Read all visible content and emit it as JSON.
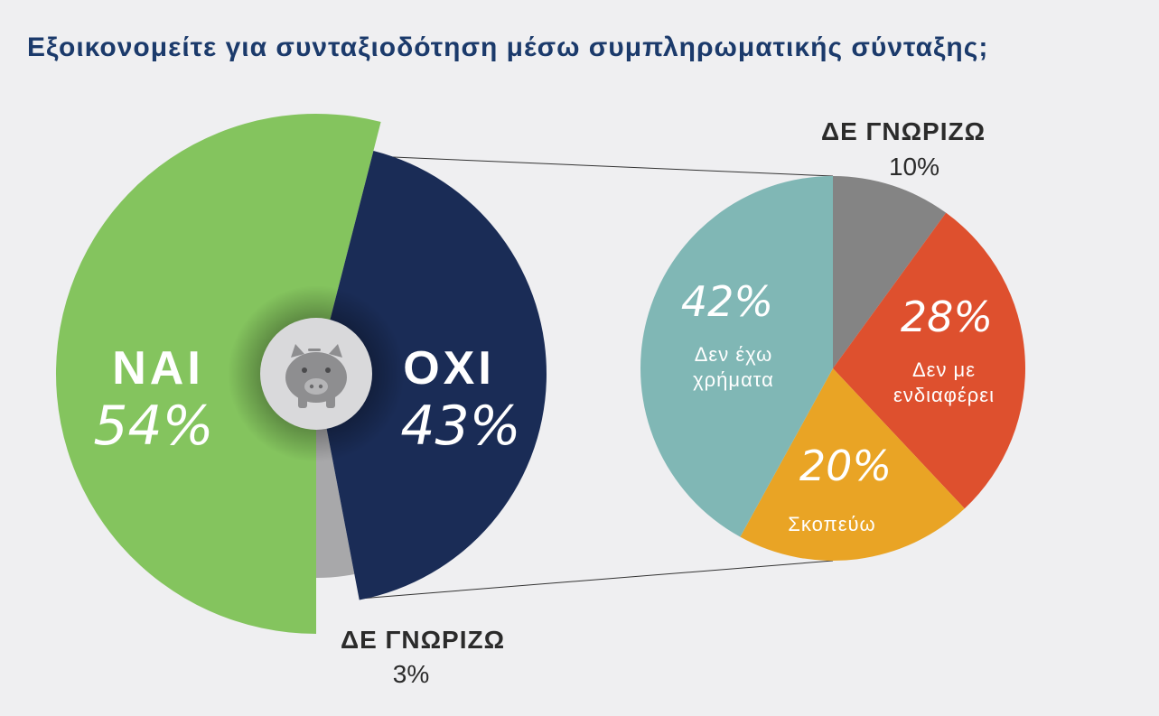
{
  "title": "Εξοικονομείτε για συνταξιοδότηση μέσω συμπληρωματικής σύνταξης;",
  "colors": {
    "yes": "#84c45e",
    "no": "#1a2c56",
    "dont_know_main": "#a8a8aa",
    "no_money": "#80b7b5",
    "not_interested": "#de502e",
    "plan_to": "#e9a425",
    "dont_know_sub": "#848484",
    "background": "#efeff1",
    "title": "#1b3a6b"
  },
  "center_icon": "piggy-bank-icon",
  "chart_data": [
    {
      "type": "pie",
      "name_in_chart": "main",
      "slices": [
        {
          "key": "yes",
          "label": "ΝΑΙ",
          "value": 54,
          "value_label": "54%"
        },
        {
          "key": "no",
          "label": "ΟΧΙ",
          "value": 43,
          "value_label": "43%"
        },
        {
          "key": "dont_know",
          "label": "ΔΕ ΓΝΩΡΙΖΩ",
          "value": 3,
          "value_label": "3%"
        }
      ]
    },
    {
      "type": "pie",
      "breakdown_of": "ΟΧΙ",
      "slices": [
        {
          "key": "dont_know_sub",
          "label": "ΔΕ ΓΝΩΡΙΖΩ",
          "value": 10,
          "value_label": "10%"
        },
        {
          "key": "not_interested",
          "label": "Δεν με ενδιαφέρει",
          "label_lines": [
            "Δεν με",
            "ενδιαφέρει"
          ],
          "value": 28,
          "value_label": "28%"
        },
        {
          "key": "plan_to",
          "label": "Σκοπεύω",
          "label_lines": [
            "Σκοπεύω"
          ],
          "value": 20,
          "value_label": "20%"
        },
        {
          "key": "no_money",
          "label": "Δεν έχω χρήματα",
          "label_lines": [
            "Δεν έχω",
            "χρήματα"
          ],
          "value": 42,
          "value_label": "42%"
        }
      ]
    }
  ]
}
